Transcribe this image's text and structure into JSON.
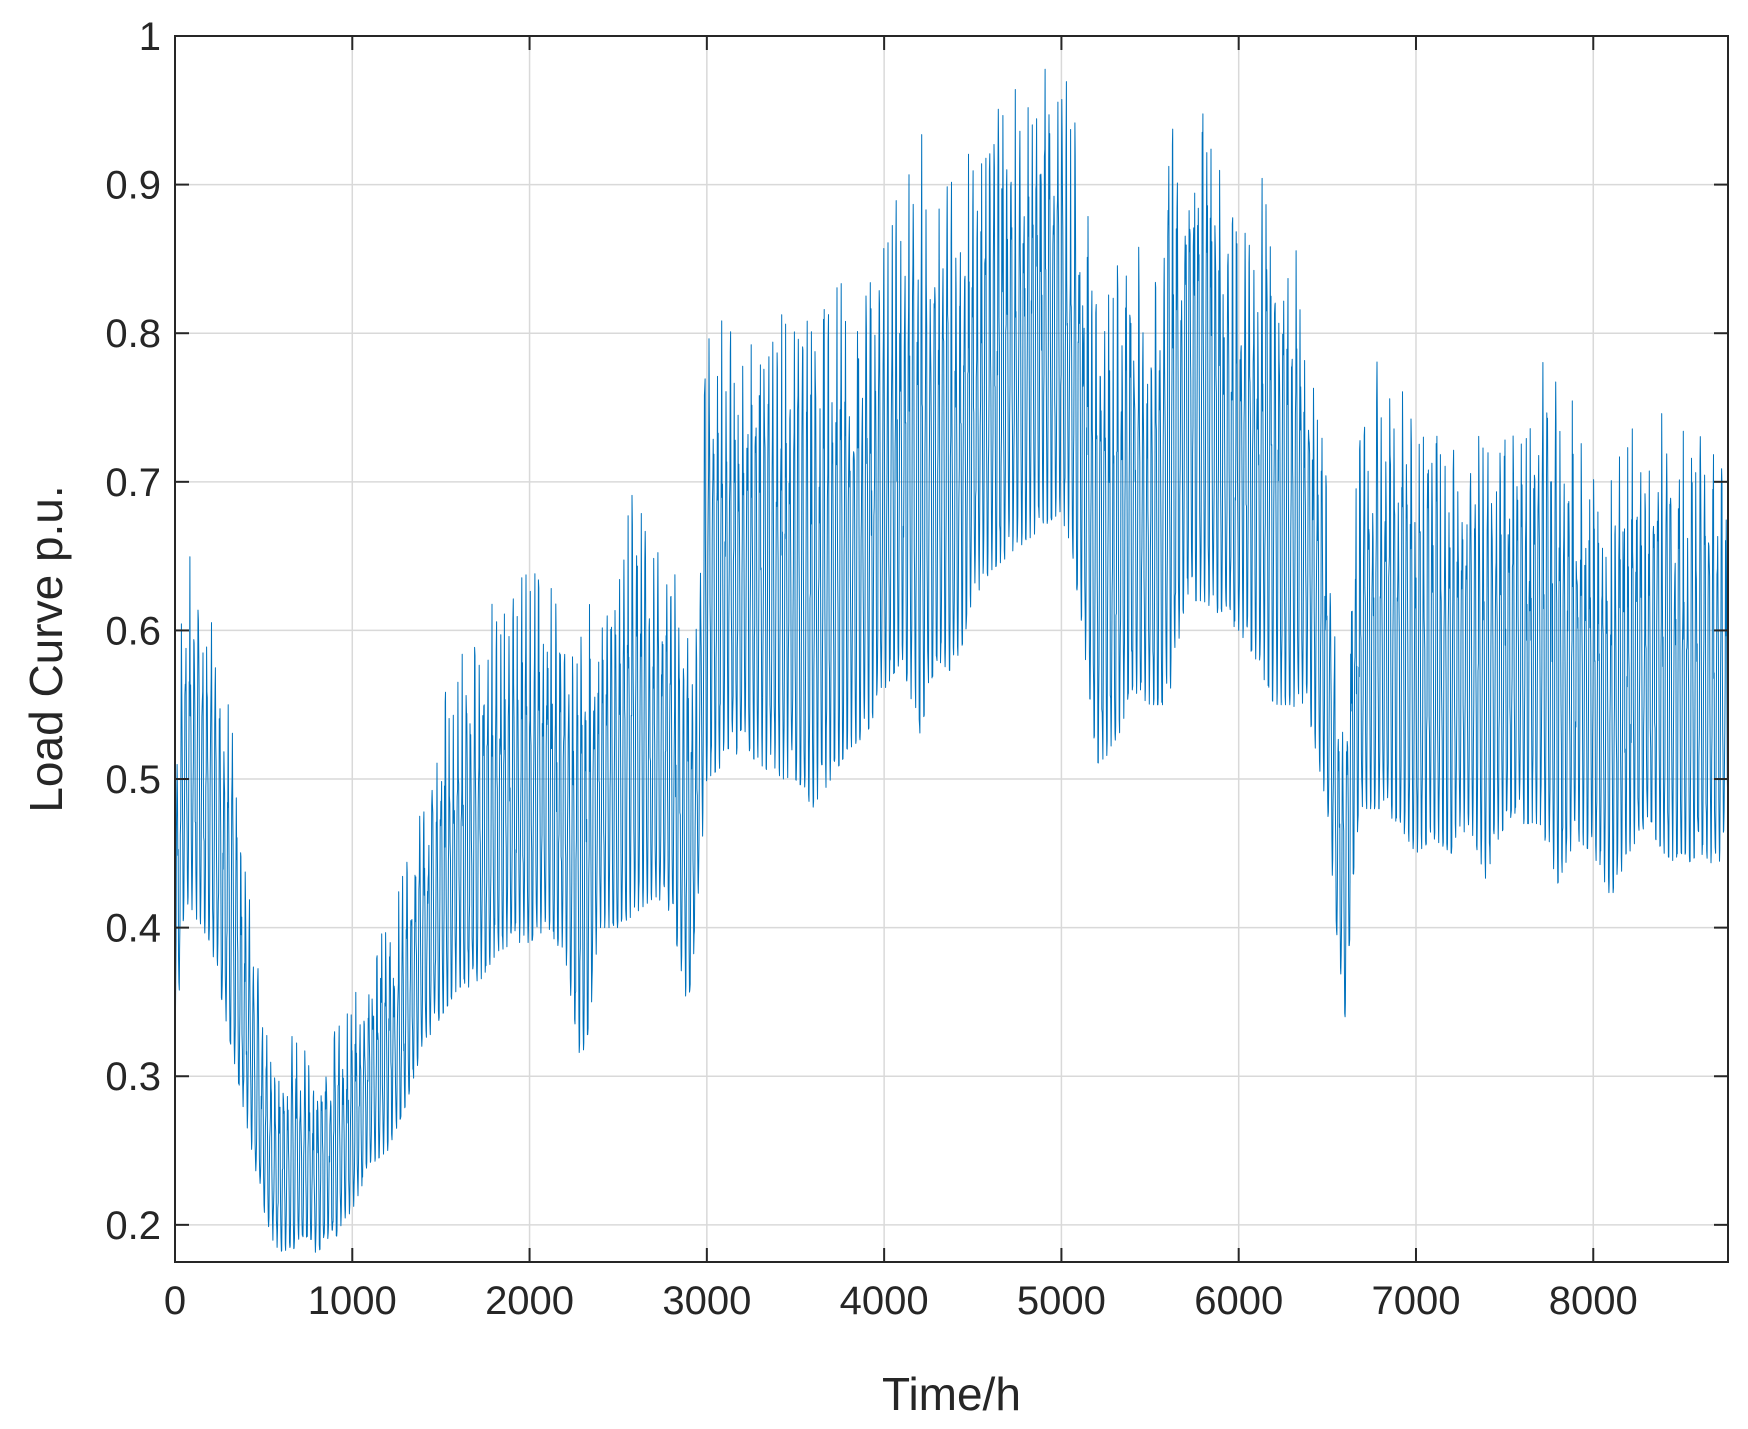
{
  "chart_data": {
    "type": "line",
    "title": "",
    "xlabel": "Time/h",
    "ylabel": "Load Curve p.u.",
    "xlim": [
      0,
      8760
    ],
    "ylim": [
      0.175,
      1.0
    ],
    "xticks": [
      0,
      1000,
      2000,
      3000,
      4000,
      5000,
      6000,
      7000,
      8000
    ],
    "xtick_labels": [
      "0",
      "1000",
      "2000",
      "3000",
      "4000",
      "5000",
      "6000",
      "7000",
      "8000"
    ],
    "yticks": [
      0.2,
      0.3,
      0.4,
      0.5,
      0.6,
      0.7,
      0.8,
      0.9,
      1.0
    ],
    "ytick_labels": [
      "0.2",
      "0.3",
      "0.4",
      "0.5",
      "0.6",
      "0.7",
      "0.8",
      "0.9",
      "1"
    ],
    "grid": true,
    "legend": "none",
    "line_color": "#0072BD",
    "series": [
      {
        "x": [
          0,
          50,
          100,
          150,
          200,
          250,
          300,
          350,
          400,
          450,
          500,
          550,
          600,
          650,
          700,
          750,
          800,
          850,
          900,
          950,
          1000,
          1100,
          1200,
          1300,
          1400,
          1500,
          1600,
          1700,
          1800,
          1900,
          2000,
          2100,
          2200,
          2300,
          2400,
          2500,
          2600,
          2700,
          2800,
          2900,
          2950,
          3000,
          3100,
          3200,
          3300,
          3400,
          3500,
          3600,
          3700,
          3800,
          3900,
          4000,
          4100,
          4200,
          4300,
          4400,
          4500,
          4600,
          4700,
          4800,
          4900,
          5000,
          5100,
          5200,
          5300,
          5400,
          5500,
          5600,
          5700,
          5800,
          5900,
          6000,
          6100,
          6200,
          6300,
          6400,
          6500,
          6550,
          6600,
          6650,
          6700,
          6800,
          6900,
          7000,
          7100,
          7200,
          7300,
          7400,
          7500,
          7600,
          7700,
          7800,
          7900,
          8000,
          8100,
          8200,
          8300,
          8400,
          8500,
          8600,
          8700,
          8760
        ],
        "min": [
          0.31,
          0.41,
          0.41,
          0.4,
          0.39,
          0.36,
          0.33,
          0.3,
          0.27,
          0.24,
          0.21,
          0.19,
          0.18,
          0.18,
          0.19,
          0.19,
          0.18,
          0.19,
          0.19,
          0.2,
          0.21,
          0.24,
          0.25,
          0.28,
          0.32,
          0.34,
          0.36,
          0.36,
          0.38,
          0.39,
          0.39,
          0.4,
          0.38,
          0.3,
          0.4,
          0.4,
          0.41,
          0.42,
          0.41,
          0.34,
          0.42,
          0.5,
          0.51,
          0.52,
          0.51,
          0.5,
          0.5,
          0.48,
          0.5,
          0.52,
          0.53,
          0.56,
          0.58,
          0.53,
          0.58,
          0.57,
          0.62,
          0.64,
          0.65,
          0.66,
          0.67,
          0.68,
          0.62,
          0.51,
          0.52,
          0.56,
          0.55,
          0.55,
          0.62,
          0.62,
          0.61,
          0.6,
          0.58,
          0.55,
          0.55,
          0.54,
          0.48,
          0.4,
          0.34,
          0.44,
          0.48,
          0.48,
          0.47,
          0.45,
          0.46,
          0.45,
          0.47,
          0.43,
          0.47,
          0.47,
          0.47,
          0.43,
          0.46,
          0.45,
          0.42,
          0.45,
          0.47,
          0.45,
          0.44,
          0.45,
          0.44,
          0.46
        ],
        "max": [
          0.5,
          0.65,
          0.66,
          0.65,
          0.62,
          0.58,
          0.55,
          0.51,
          0.45,
          0.4,
          0.36,
          0.32,
          0.3,
          0.33,
          0.33,
          0.33,
          0.32,
          0.33,
          0.33,
          0.35,
          0.36,
          0.38,
          0.42,
          0.44,
          0.49,
          0.56,
          0.58,
          0.6,
          0.62,
          0.63,
          0.65,
          0.64,
          0.63,
          0.62,
          0.63,
          0.63,
          0.72,
          0.65,
          0.66,
          0.62,
          0.6,
          0.86,
          0.84,
          0.82,
          0.83,
          0.82,
          0.83,
          0.82,
          0.85,
          0.87,
          0.86,
          0.89,
          0.91,
          0.94,
          0.92,
          0.9,
          0.93,
          0.94,
          0.98,
          0.97,
          0.99,
          1.0,
          0.95,
          0.86,
          0.86,
          0.88,
          0.83,
          0.97,
          0.96,
          0.98,
          0.91,
          0.91,
          0.91,
          0.91,
          0.89,
          0.82,
          0.74,
          0.62,
          0.55,
          0.72,
          0.76,
          0.81,
          0.78,
          0.75,
          0.76,
          0.75,
          0.74,
          0.76,
          0.75,
          0.75,
          0.78,
          0.8,
          0.76,
          0.73,
          0.72,
          0.75,
          0.73,
          0.77,
          0.76,
          0.73,
          0.74,
          0.73
        ]
      }
    ]
  }
}
